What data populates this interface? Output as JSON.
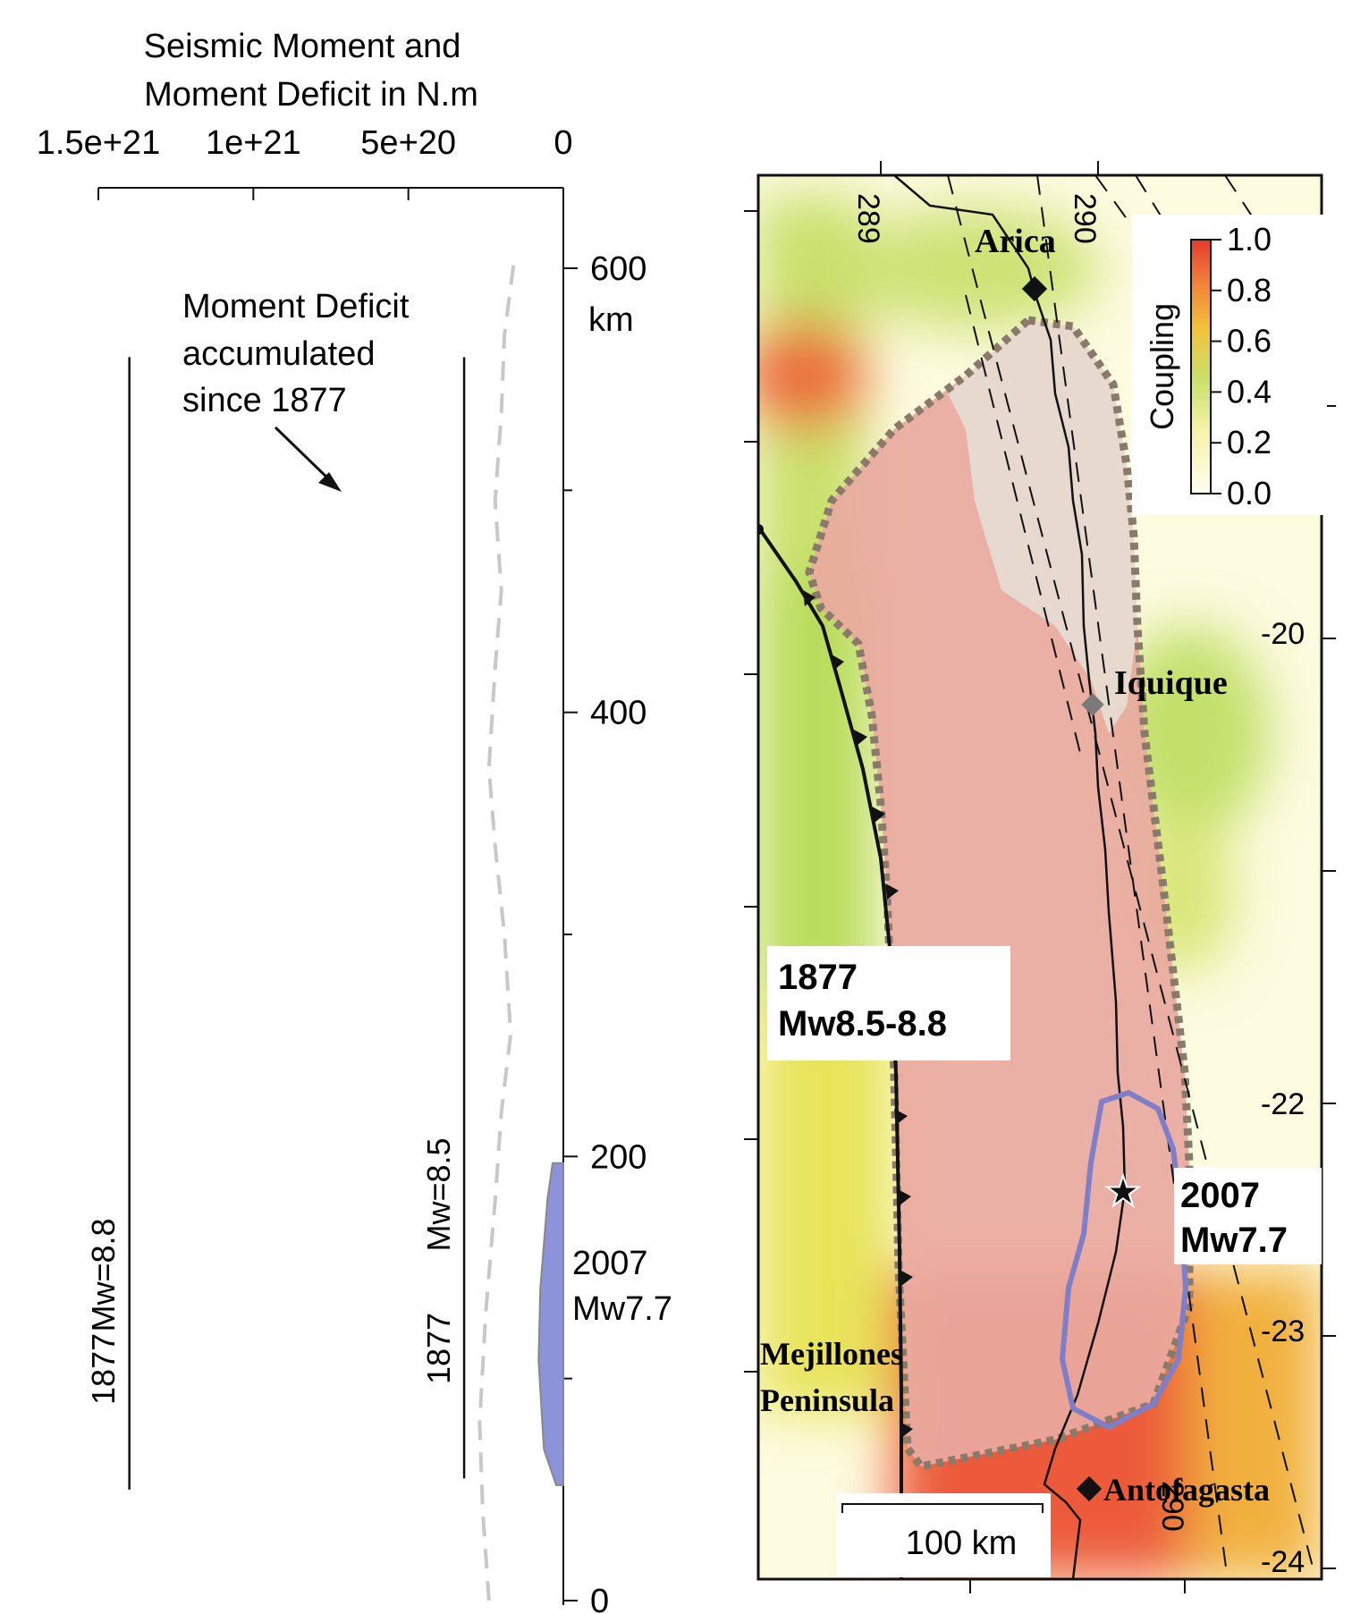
{
  "left_panel": {
    "title_line1": "Seismic Moment and",
    "title_line2": "Moment Deficit in N.m",
    "x_ticks": [
      "1.5e+21",
      "1e+21",
      "5e+20",
      "0"
    ],
    "y_ticks": [
      "600",
      "400",
      "200",
      "0"
    ],
    "y_unit": "km",
    "annotation_line1": "Moment Deficit",
    "annotation_line2": "accumulated",
    "annotation_line3": "since 1877",
    "ref_line_a_label_mw": "Mw=8.8",
    "ref_line_a_label_year": "1877",
    "ref_line_b_label_mw": "Mw=8.5",
    "ref_line_b_label_year": "1877",
    "event_label_line1": "2007",
    "event_label_line2": "Mw7.7",
    "event_color": "#8c93d8"
  },
  "chart_data": {
    "type": "line",
    "xlim": [
      1.5e+21,
      0
    ],
    "ylim": [
      0,
      600
    ],
    "ylabel": "km",
    "series": [
      {
        "name": "Moment Deficit accumulated since 1877",
        "style": "dashed",
        "color": "#c8c8c8",
        "points": [
          [
            2.4e+20,
            0
          ],
          [
            2.6e+20,
            40
          ],
          [
            2.7e+20,
            80
          ],
          [
            2.5e+20,
            130
          ],
          [
            2.2e+20,
            180
          ],
          [
            2e+20,
            220
          ],
          [
            1.7e+20,
            255
          ],
          [
            1.9e+20,
            300
          ],
          [
            2.2e+20,
            340
          ],
          [
            2.4e+20,
            375
          ],
          [
            2.2e+20,
            420
          ],
          [
            2e+20,
            455
          ],
          [
            2.2e+20,
            495
          ],
          [
            2e+20,
            535
          ],
          [
            1.9e+20,
            570
          ],
          [
            1.6e+20,
            602
          ]
        ]
      }
    ],
    "reference_lines": [
      {
        "label": "1877 Mw=8.8",
        "x": 1.4e+21,
        "y_range": [
          50,
          560
        ]
      },
      {
        "label": "1877 Mw=8.5",
        "x": 3.2e+20,
        "y_range": [
          55,
          560
        ]
      }
    ],
    "event_moment_profile": {
      "label": "2007 Mw7.7",
      "peak_x": 8e+19,
      "y_range": [
        52,
        197
      ]
    }
  },
  "map": {
    "lon_labels": [
      "289",
      "290",
      "290"
    ],
    "lat_labels": [
      "-20",
      "-22",
      "-23",
      "-24"
    ],
    "cities": [
      "Arica",
      "Iquique",
      "Antofagasta"
    ],
    "peninsula_line1": "Mejillones",
    "peninsula_line2": "Peninsula",
    "box_1877_line1": "1877",
    "box_1877_line2": "Mw8.5-8.8",
    "box_2007_line1": "2007",
    "box_2007_line2": "Mw7.7",
    "scale_label": "100 km",
    "colorbar_title": "Coupling",
    "colorbar_ticks": [
      "1.0",
      "0.8",
      "0.6",
      "0.4",
      "0.2",
      "0.0"
    ],
    "colors": {
      "high_coupling": "#e84a3a",
      "mid_coupling": "#c8e06a",
      "low_coupling": "#fdfbe0",
      "rupture_1877_fill": "#e9a9a0",
      "rupture_2007_outline": "#7e7ec9",
      "zone_outline": "#8a8a7a"
    }
  }
}
